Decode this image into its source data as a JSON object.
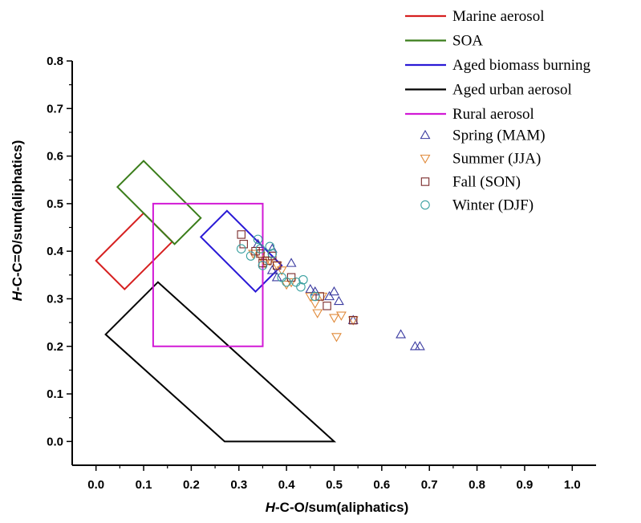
{
  "chart_data": {
    "type": "scatter",
    "xlabel_italic": "H",
    "xlabel_rest": "-C-O/sum(aliphatics)",
    "ylabel_italic": "H",
    "ylabel_rest": "-C-C=O/sum(aliphatics)",
    "xlim": [
      -0.05,
      1.05
    ],
    "ylim": [
      -0.05,
      0.8
    ],
    "x_ticks": [
      "0.0",
      "0.1",
      "0.2",
      "0.3",
      "0.4",
      "0.5",
      "0.6",
      "0.7",
      "0.8",
      "0.9",
      "1.0"
    ],
    "y_ticks": [
      "0.0",
      "0.1",
      "0.2",
      "0.3",
      "0.4",
      "0.5",
      "0.6",
      "0.7",
      "0.8"
    ],
    "grid": false,
    "legend_position": "top-right",
    "regions": [
      {
        "name": "Marine aerosol",
        "color": "#d62020",
        "polygon": [
          [
            0.0,
            0.38
          ],
          [
            0.06,
            0.32
          ],
          [
            0.16,
            0.42
          ],
          [
            0.1,
            0.48
          ]
        ]
      },
      {
        "name": "SOA",
        "color": "#3a7d1a",
        "polygon": [
          [
            0.045,
            0.535
          ],
          [
            0.1,
            0.59
          ],
          [
            0.22,
            0.47
          ],
          [
            0.165,
            0.415
          ]
        ]
      },
      {
        "name": "Aged biomass burning",
        "color": "#2a1ad6",
        "polygon": [
          [
            0.22,
            0.43
          ],
          [
            0.275,
            0.485
          ],
          [
            0.39,
            0.37
          ],
          [
            0.335,
            0.315
          ]
        ]
      },
      {
        "name": "Aged urban aerosol",
        "color": "#000000",
        "polygon": [
          [
            0.02,
            0.225
          ],
          [
            0.13,
            0.335
          ],
          [
            0.5,
            0.0
          ],
          [
            0.27,
            0.0
          ]
        ]
      },
      {
        "name": "Rural aerosol",
        "color": "#d21ad6",
        "polygon": [
          [
            0.12,
            0.2
          ],
          [
            0.12,
            0.5
          ],
          [
            0.35,
            0.5
          ],
          [
            0.35,
            0.2
          ]
        ]
      }
    ],
    "series": [
      {
        "name": "Spring (MAM)",
        "marker": "triangle-up",
        "color": "#3a3aa0",
        "points": [
          [
            0.34,
            0.415
          ],
          [
            0.37,
            0.405
          ],
          [
            0.37,
            0.36
          ],
          [
            0.38,
            0.345
          ],
          [
            0.41,
            0.375
          ],
          [
            0.45,
            0.32
          ],
          [
            0.46,
            0.315
          ],
          [
            0.49,
            0.305
          ],
          [
            0.5,
            0.315
          ],
          [
            0.51,
            0.295
          ],
          [
            0.54,
            0.255
          ],
          [
            0.64,
            0.225
          ],
          [
            0.67,
            0.2
          ],
          [
            0.68,
            0.2
          ]
        ]
      },
      {
        "name": "Summer (JJA)",
        "marker": "triangle-down",
        "color": "#e08a3a",
        "points": [
          [
            0.33,
            0.395
          ],
          [
            0.345,
            0.39
          ],
          [
            0.355,
            0.375
          ],
          [
            0.365,
            0.38
          ],
          [
            0.38,
            0.37
          ],
          [
            0.39,
            0.36
          ],
          [
            0.4,
            0.33
          ],
          [
            0.41,
            0.335
          ],
          [
            0.45,
            0.305
          ],
          [
            0.46,
            0.29
          ],
          [
            0.465,
            0.27
          ],
          [
            0.475,
            0.305
          ],
          [
            0.5,
            0.26
          ],
          [
            0.505,
            0.22
          ],
          [
            0.515,
            0.265
          ],
          [
            0.54,
            0.255
          ]
        ]
      },
      {
        "name": "Fall (SON)",
        "marker": "square",
        "color": "#7a2a2a",
        "points": [
          [
            0.305,
            0.435
          ],
          [
            0.31,
            0.415
          ],
          [
            0.335,
            0.4
          ],
          [
            0.345,
            0.395
          ],
          [
            0.35,
            0.375
          ],
          [
            0.36,
            0.38
          ],
          [
            0.37,
            0.39
          ],
          [
            0.38,
            0.37
          ],
          [
            0.41,
            0.345
          ],
          [
            0.47,
            0.305
          ],
          [
            0.485,
            0.285
          ],
          [
            0.54,
            0.255
          ]
        ]
      },
      {
        "name": "Winter (DJF)",
        "marker": "circle",
        "color": "#3aa0a0",
        "points": [
          [
            0.305,
            0.405
          ],
          [
            0.325,
            0.39
          ],
          [
            0.34,
            0.425
          ],
          [
            0.345,
            0.405
          ],
          [
            0.35,
            0.37
          ],
          [
            0.365,
            0.41
          ],
          [
            0.37,
            0.395
          ],
          [
            0.39,
            0.345
          ],
          [
            0.4,
            0.335
          ],
          [
            0.42,
            0.335
          ],
          [
            0.43,
            0.325
          ],
          [
            0.435,
            0.34
          ],
          [
            0.46,
            0.305
          ]
        ]
      }
    ]
  }
}
